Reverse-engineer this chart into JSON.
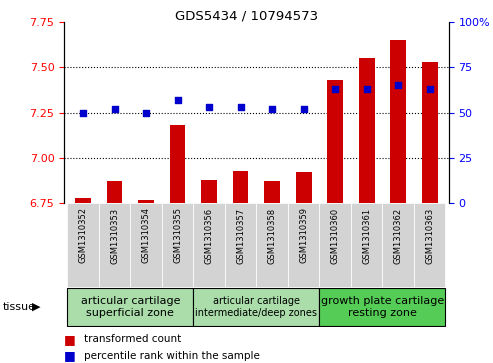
{
  "title": "GDS5434 / 10794573",
  "samples": [
    "GSM1310352",
    "GSM1310353",
    "GSM1310354",
    "GSM1310355",
    "GSM1310356",
    "GSM1310357",
    "GSM1310358",
    "GSM1310359",
    "GSM1310360",
    "GSM1310361",
    "GSM1310362",
    "GSM1310363"
  ],
  "red_values": [
    6.78,
    6.87,
    6.77,
    7.18,
    6.88,
    6.93,
    6.87,
    6.92,
    7.43,
    7.55,
    7.65,
    7.53
  ],
  "blue_values": [
    50,
    52,
    50,
    57,
    53,
    53,
    52,
    52,
    63,
    63,
    65,
    63
  ],
  "ylim_left": [
    6.75,
    7.75
  ],
  "ylim_right": [
    0,
    100
  ],
  "yticks_left": [
    6.75,
    7.0,
    7.25,
    7.5,
    7.75
  ],
  "yticks_right": [
    0,
    25,
    50,
    75,
    100
  ],
  "groups": [
    {
      "label": "articular cartilage\nsuperficial zone",
      "start": 0,
      "end": 4,
      "color": "#aaddaa",
      "fontsize": 8
    },
    {
      "label": "articular cartilage\nintermediate/deep zones",
      "start": 4,
      "end": 8,
      "color": "#aaddaa",
      "fontsize": 7
    },
    {
      "label": "growth plate cartilage\nresting zone",
      "start": 8,
      "end": 12,
      "color": "#55cc55",
      "fontsize": 8
    }
  ],
  "bar_color": "#CC0000",
  "dot_color": "#0000CC",
  "bar_bottom": 6.75,
  "tick_bg_color": "#d3d3d3",
  "tissue_label": "tissue",
  "legend_red": "transformed count",
  "legend_blue": "percentile rank within the sample",
  "grid_ticks": [
    7.0,
    7.25,
    7.5
  ]
}
